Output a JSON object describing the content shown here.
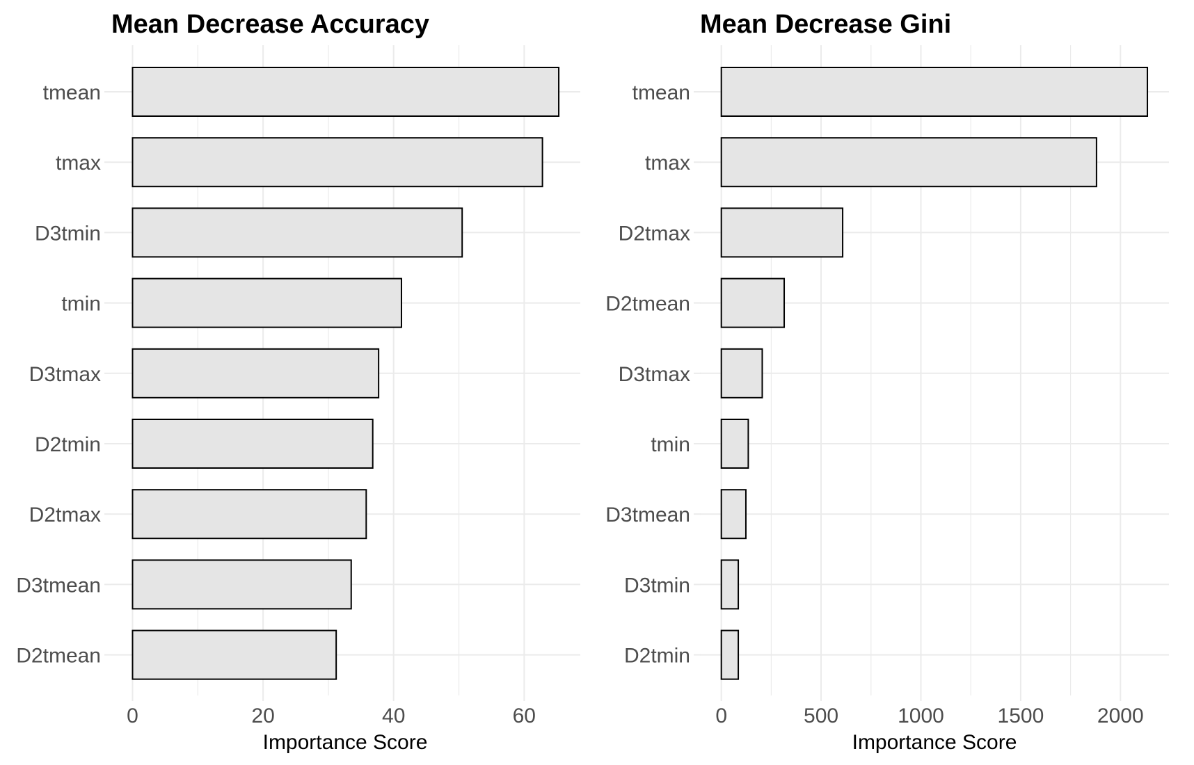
{
  "chart_data": [
    {
      "type": "bar",
      "orientation": "horizontal",
      "title": "Mean Decrease Accuracy",
      "xlabel": "Importance Score",
      "ylabel": "",
      "categories": [
        "tmean",
        "tmax",
        "D3tmin",
        "tmin",
        "D3tmax",
        "D2tmin",
        "D2tmax",
        "D3tmean",
        "D2tmean"
      ],
      "values": [
        65.3,
        62.8,
        50.5,
        41.2,
        37.7,
        36.8,
        35.8,
        33.5,
        31.2
      ],
      "xticks": [
        0,
        20,
        40,
        60
      ],
      "xlim": [
        -3.25,
        68.6
      ],
      "grid": true,
      "colors": {
        "bar_fill": "#e5e5e5",
        "bar_stroke": "#000000",
        "grid": "#ebebeb"
      }
    },
    {
      "type": "bar",
      "orientation": "horizontal",
      "title": "Mean Decrease Gini",
      "xlabel": "Importance Score",
      "ylabel": "",
      "categories": [
        "tmean",
        "tmax",
        "D2tmax",
        "D2tmean",
        "D3tmax",
        "tmin",
        "D3tmean",
        "D3tmin",
        "D2tmin"
      ],
      "values": [
        2135,
        1880,
        608,
        315,
        205,
        135,
        123,
        85,
        85
      ],
      "xticks": [
        0,
        500,
        1000,
        1500,
        2000
      ],
      "xlim": [
        -107,
        2243
      ],
      "grid": true,
      "colors": {
        "bar_fill": "#e5e5e5",
        "bar_stroke": "#000000",
        "grid": "#ebebeb"
      }
    }
  ]
}
